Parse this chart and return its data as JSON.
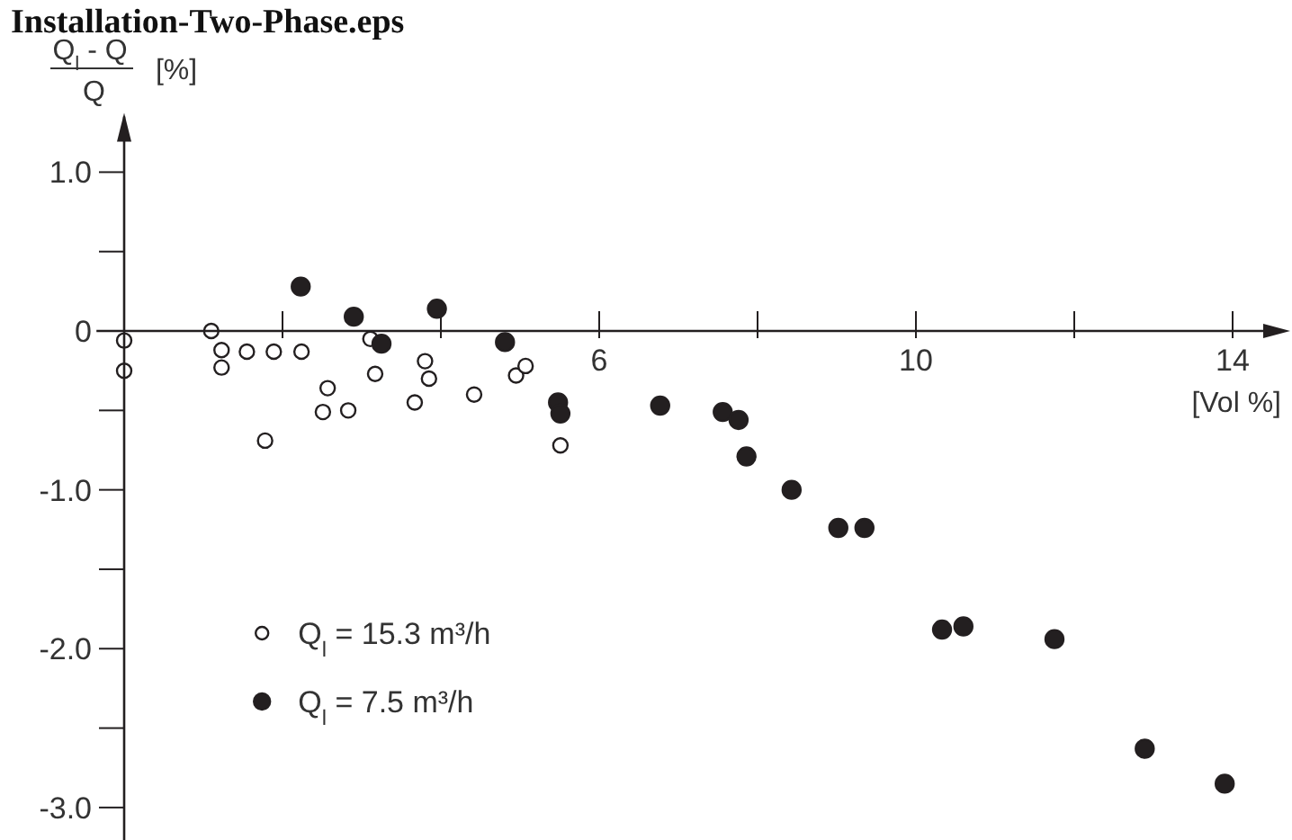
{
  "chart_data": {
    "type": "scatter",
    "title": "Installation-Two-Phase.eps",
    "xlabel": "[Vol %]",
    "ylabel": "Q$_{l}$ - Q\nQ [%]",
    "xlim": [
      -0.35,
      14.7
    ],
    "ylim": [
      -3.2,
      1.35
    ],
    "xticks": [
      {
        "value": 2,
        "label": null
      },
      {
        "value": 4,
        "label": null
      },
      6,
      {
        "value": 8,
        "label": null
      },
      10,
      {
        "value": 12,
        "label": null
      },
      14
    ],
    "yticks": [
      {
        "value": 1,
        "label": "1.0"
      },
      {
        "value": 0.5,
        "label": null
      },
      0,
      {
        "value": -0.5,
        "label": null
      },
      {
        "value": -1,
        "label": "-1.0"
      },
      {
        "value": -1.5,
        "label": null
      },
      {
        "value": -2,
        "label": "-2.0"
      },
      {
        "value": -2.5,
        "label": null
      },
      {
        "value": -3,
        "label": "-3.0"
      }
    ],
    "marker": "circle",
    "grid": false,
    "legend": "bottom left",
    "series": [
      {
        "name": "Q$_{l}$ = 15.3 m³/h",
        "color": "#ffffff",
        "x": [
          0,
          0,
          1.1,
          1.23,
          1.23,
          1.55,
          1.89,
          2.24,
          1.78,
          2.57,
          2.51,
          2.83,
          3.11,
          3.17,
          3.8,
          3.85,
          3.67,
          4.42,
          4.95,
          5.07,
          5.51
        ],
        "values": [
          -0.06,
          -0.25,
          0.0,
          -0.12,
          -0.23,
          -0.13,
          -0.13,
          -0.13,
          -0.69,
          -0.36,
          -0.51,
          -0.5,
          -0.05,
          -0.27,
          -0.19,
          -0.3,
          -0.45,
          -0.4,
          -0.28,
          -0.22,
          -0.72
        ]
      },
      {
        "name": "Q$_{l}$ = 7.5 m³/h",
        "color": "#231f20",
        "x": [
          2.23,
          2.9,
          3.25,
          3.95,
          4.81,
          5.48,
          5.51,
          6.77,
          7.56,
          7.76,
          7.86,
          8.43,
          9.02,
          9.35,
          10.33,
          10.6,
          11.75,
          12.89,
          13.9
        ],
        "values": [
          0.28,
          0.09,
          -0.08,
          0.14,
          -0.07,
          -0.45,
          -0.52,
          -0.47,
          -0.51,
          -0.56,
          -0.79,
          -1.0,
          -1.24,
          -1.24,
          -1.88,
          -1.86,
          -1.94,
          -2.63,
          -2.85
        ]
      }
    ]
  }
}
